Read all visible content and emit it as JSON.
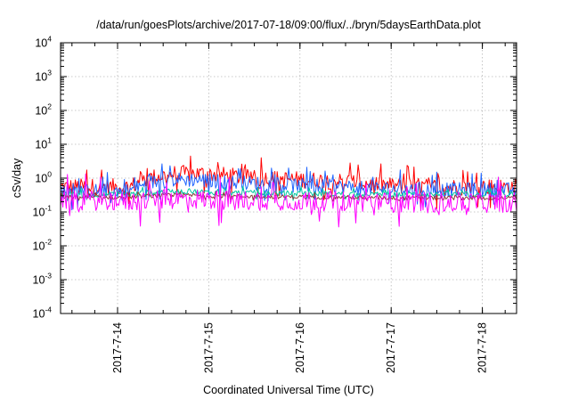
{
  "chart_data": {
    "type": "line",
    "title": "/data/run/goesPlots/archive/2017-07-18/09:00/flux/../bryn/5daysEarthData.plot",
    "xlabel": "Coordinated Universal Time (UTC)",
    "ylabel": "cSv/day",
    "yscale": "log",
    "ylim": [
      0.0001,
      10000
    ],
    "xlim": [
      "2017-07-13 09:00",
      "2017-07-18 09:00"
    ],
    "grid": true,
    "legend": "none",
    "x_ticks": [
      {
        "at": "2017-07-14 00:00",
        "label": "2017-7-14"
      },
      {
        "at": "2017-07-15 00:00",
        "label": "2017-7-15"
      },
      {
        "at": "2017-07-16 00:00",
        "label": "2017-7-16"
      },
      {
        "at": "2017-07-17 00:00",
        "label": "2017-7-17"
      },
      {
        "at": "2017-07-18 00:00",
        "label": "2017-7-18"
      }
    ],
    "y_ticks": [
      {
        "value": 0.0001,
        "base": "10",
        "exp": "-4"
      },
      {
        "value": 0.001,
        "base": "10",
        "exp": "-3"
      },
      {
        "value": 0.01,
        "base": "10",
        "exp": "-2"
      },
      {
        "value": 0.1,
        "base": "10",
        "exp": "-1"
      },
      {
        "value": 1,
        "base": "10",
        "exp": "0"
      },
      {
        "value": 10,
        "base": "10",
        "exp": "1"
      },
      {
        "value": 100,
        "base": "10",
        "exp": "2"
      },
      {
        "value": 1000,
        "base": "10",
        "exp": "3"
      },
      {
        "value": 10000,
        "base": "10",
        "exp": "4"
      }
    ],
    "x": [
      "2017-07-13 09:00",
      "2017-07-13 21:00",
      "2017-07-14 03:00",
      "2017-07-14 09:00",
      "2017-07-14 15:00",
      "2017-07-14 21:00",
      "2017-07-15 00:00",
      "2017-07-15 06:00",
      "2017-07-15 12:00",
      "2017-07-15 18:00",
      "2017-07-16 00:00",
      "2017-07-16 12:00",
      "2017-07-16 18:00",
      "2017-07-17 00:00",
      "2017-07-17 12:00",
      "2017-07-18 00:00",
      "2017-07-18 09:00"
    ],
    "series": [
      {
        "color": "#ff0000",
        "jitter": 0.25,
        "values": [
          0.55,
          0.55,
          0.55,
          1.05,
          1.35,
          1.35,
          1.35,
          1.15,
          1.0,
          0.95,
          0.9,
          0.8,
          0.7,
          0.6,
          0.55,
          0.55,
          0.55
        ]
      },
      {
        "color": "#1f64ff",
        "jitter": 0.22,
        "values": [
          0.42,
          0.42,
          0.42,
          0.75,
          0.9,
          0.9,
          0.85,
          0.75,
          0.7,
          0.65,
          0.6,
          0.55,
          0.5,
          0.48,
          0.45,
          0.45,
          0.45
        ]
      },
      {
        "color": "#00c8a0",
        "jitter": 0.08,
        "values": [
          0.33,
          0.33,
          0.33,
          0.38,
          0.4,
          0.4,
          0.38,
          0.37,
          0.36,
          0.36,
          0.35,
          0.34,
          0.33,
          0.33,
          0.33,
          0.33,
          0.33
        ]
      },
      {
        "color": "#8b3a3a",
        "jitter": 0.06,
        "values": [
          0.27,
          0.27,
          0.27,
          0.3,
          0.31,
          0.31,
          0.3,
          0.29,
          0.29,
          0.28,
          0.28,
          0.27,
          0.26,
          0.26,
          0.26,
          0.26,
          0.26
        ]
      },
      {
        "color": "#ff00ff",
        "jitter": 0.3,
        "values": [
          0.22,
          0.22,
          0.2,
          0.23,
          0.24,
          0.24,
          0.23,
          0.22,
          0.22,
          0.22,
          0.21,
          0.21,
          0.2,
          0.19,
          0.19,
          0.19,
          0.19
        ]
      }
    ]
  }
}
